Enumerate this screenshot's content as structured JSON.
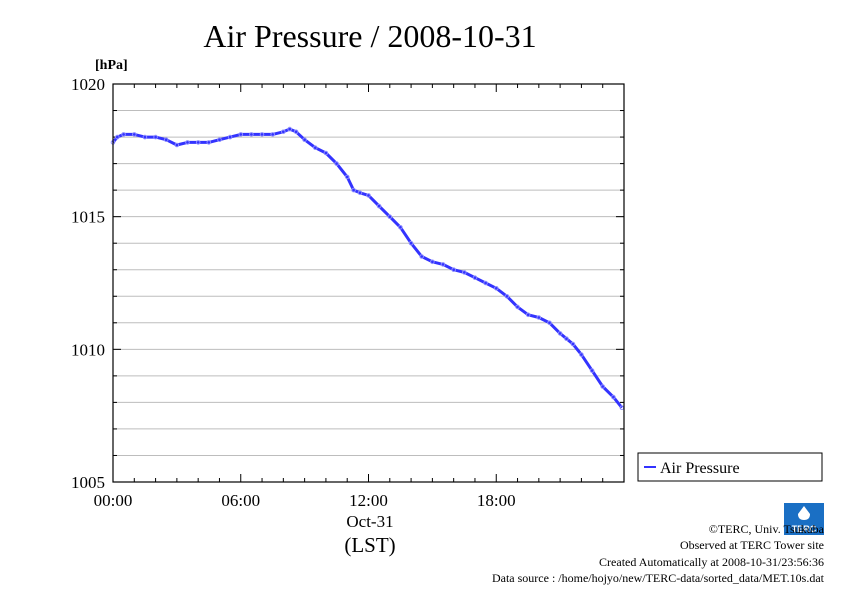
{
  "chart_data": {
    "type": "line",
    "title": "Air Pressure / 2008-10-31",
    "ylabel": "[hPa]",
    "xlabel": "(LST)",
    "date_label": "Oct-31",
    "ylim": [
      1005,
      1020
    ],
    "y_ticks": [
      "1005",
      "1010",
      "1015",
      "1020"
    ],
    "x_ticks": [
      "00:00",
      "06:00",
      "12:00",
      "18:00"
    ],
    "grid": true,
    "legend_position": "right, bottom",
    "series": [
      {
        "name": "Air Pressure",
        "color": "#3333ff",
        "x_hours": [
          0,
          0.2,
          0.5,
          1.0,
          1.5,
          2.0,
          2.5,
          3.0,
          3.5,
          4.0,
          4.5,
          5.0,
          5.5,
          6.0,
          6.5,
          7.0,
          7.5,
          8.0,
          8.3,
          8.6,
          9.0,
          9.5,
          10.0,
          10.5,
          11.0,
          11.3,
          11.6,
          12.0,
          12.5,
          13.0,
          13.5,
          14.0,
          14.5,
          15.0,
          15.5,
          16.0,
          16.5,
          17.0,
          17.5,
          18.0,
          18.5,
          19.0,
          19.5,
          20.0,
          20.5,
          21.0,
          21.3,
          21.6,
          22.0,
          22.5,
          23.0,
          23.5,
          23.9
        ],
        "values": [
          1017.8,
          1018.0,
          1018.1,
          1018.1,
          1018.0,
          1018.0,
          1017.9,
          1017.7,
          1017.8,
          1017.8,
          1017.8,
          1017.9,
          1018.0,
          1018.1,
          1018.1,
          1018.1,
          1018.1,
          1018.2,
          1018.3,
          1018.2,
          1017.9,
          1017.6,
          1017.4,
          1017.0,
          1016.5,
          1016.0,
          1015.9,
          1015.8,
          1015.4,
          1015.0,
          1014.6,
          1014.0,
          1013.5,
          1013.3,
          1013.2,
          1013.0,
          1012.9,
          1012.7,
          1012.5,
          1012.3,
          1012.0,
          1011.6,
          1011.3,
          1011.2,
          1011.0,
          1010.6,
          1010.4,
          1010.2,
          1009.8,
          1009.2,
          1008.6,
          1008.2,
          1007.8
        ]
      }
    ]
  },
  "credits": {
    "copyright": "©TERC, Univ. Tsukuba",
    "observed": "Observed at TERC Tower site",
    "created": "Created Automatically at 2008-10-31/23:56:36",
    "source": "Data source : /home/hojyo/new/TERC-data/sorted_data/MET.10s.dat"
  },
  "logo": {
    "text": "TERC",
    "color": "#1a6fc4"
  }
}
